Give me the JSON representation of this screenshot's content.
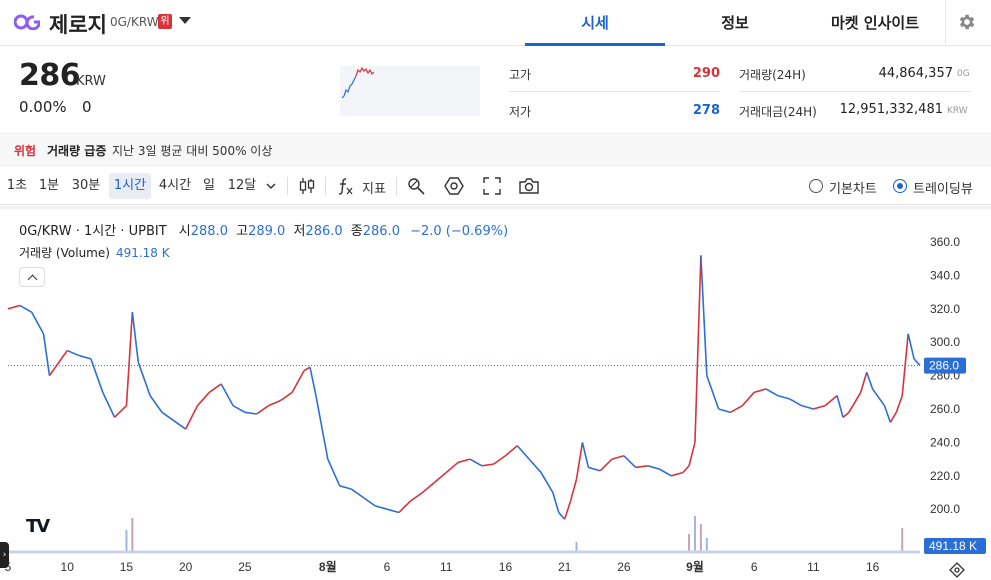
{
  "header": {
    "coin_name": "제로지",
    "pair": "0G/KRW",
    "warning_badge": "위",
    "tabs": [
      {
        "label": "시세",
        "active": true
      },
      {
        "label": "정보",
        "active": false
      },
      {
        "label": "마켓 인사이트",
        "active": false
      }
    ]
  },
  "ticker": {
    "price": "286",
    "unit": "KRW",
    "change_rate": "0.00%",
    "change_price": "0",
    "high_label": "고가",
    "high_value": "290",
    "low_label": "저가",
    "low_value": "278",
    "volume_label": "거래량(24H)",
    "volume_value": "44,864,357",
    "volume_unit": "0G",
    "amount_label": "거래대금(24H)",
    "amount_value": "12,951,332,481",
    "amount_unit": "KRW"
  },
  "alert": {
    "tag": "위험",
    "title": "거래량 급증",
    "text": "지난 3일 평균 대비 500% 이상"
  },
  "toolbar": {
    "timeframes": [
      {
        "label": "1초",
        "active": false
      },
      {
        "label": "1분",
        "active": false
      },
      {
        "label": "30분",
        "active": false
      },
      {
        "label": "1시간",
        "active": true
      },
      {
        "label": "4시간",
        "active": false
      },
      {
        "label": "일",
        "active": false
      },
      {
        "label": "12달",
        "active": false
      }
    ],
    "indicator_label": "지표",
    "chart_modes": [
      {
        "label": "기본차트",
        "selected": false
      },
      {
        "label": "트레이딩뷰",
        "selected": true
      }
    ]
  },
  "chart_legend": {
    "symbol": "0G/KRW · 1시간 · UPBIT",
    "open_label": "시",
    "open_value": "288.0",
    "high_label": "고",
    "high_value": "289.0",
    "low_label": "저",
    "low_value": "286.0",
    "close_label": "종",
    "close_value": "286.0",
    "change": "−2.0 (−0.69%)",
    "volume_label": "거래량 (Volume)",
    "volume_value": "491.18 K"
  },
  "colors": {
    "accent": "#1a63d3",
    "up": "#d6333d",
    "down": "#2b6fd6",
    "alert": "#d6333d"
  },
  "chart_data": {
    "type": "line",
    "title": "0G/KRW · 1시간 · UPBIT",
    "ylim": [
      190,
      365
    ],
    "y_ticks": [
      "360.0",
      "340.0",
      "320.0",
      "300.0",
      "280.0",
      "260.0",
      "240.0",
      "220.0",
      "200.0"
    ],
    "y_tick_values": [
      360,
      340,
      320,
      300,
      280,
      260,
      240,
      220,
      200
    ],
    "x_ticks": [
      "5",
      "10",
      "15",
      "20",
      "25",
      "8월",
      "6",
      "11",
      "16",
      "21",
      "26",
      "9월",
      "6",
      "11",
      "16"
    ],
    "x_tick_positions": [
      0,
      5,
      10,
      15,
      20,
      27,
      32,
      37,
      42,
      47,
      52,
      58,
      63,
      68,
      73
    ],
    "x_range": [
      0,
      77
    ],
    "last_price_label": "286.0",
    "last_price": 286.0,
    "last_volume_label": "491.18 K",
    "series": [
      {
        "name": "0G/KRW",
        "x": [
          0,
          1,
          2,
          3,
          3.5,
          4,
          5,
          6,
          7,
          8,
          9,
          10,
          10.5,
          11,
          12,
          13,
          14,
          15,
          16,
          17,
          18,
          19,
          20,
          21,
          22,
          23,
          24,
          25,
          25.5,
          26,
          27,
          28,
          29,
          30,
          31,
          32,
          33,
          34,
          35,
          36,
          37,
          38,
          39,
          40,
          41,
          42,
          43,
          44,
          45,
          46,
          46.5,
          47,
          47.5,
          48,
          48.5,
          49,
          50,
          51,
          52,
          53,
          54,
          55,
          56,
          57,
          57.5,
          58,
          58.5,
          59,
          60,
          61,
          62,
          63,
          64,
          65,
          66,
          67,
          68,
          69,
          70,
          70.5,
          71,
          72,
          72.5,
          73,
          74,
          74.5,
          75,
          75.5,
          76,
          76.5,
          77
        ],
        "values": [
          320,
          322,
          318,
          305,
          280,
          285,
          295,
          292,
          290,
          270,
          255,
          262,
          318,
          288,
          268,
          258,
          253,
          248,
          262,
          270,
          275,
          262,
          258,
          257,
          262,
          265,
          270,
          283,
          285,
          268,
          230,
          214,
          212,
          207,
          202,
          200,
          198,
          205,
          210,
          216,
          222,
          228,
          230,
          226,
          227,
          232,
          238,
          230,
          222,
          210,
          198,
          194,
          205,
          218,
          240,
          225,
          223,
          230,
          232,
          225,
          226,
          224,
          220,
          222,
          226,
          240,
          352,
          280,
          260,
          258,
          262,
          270,
          272,
          268,
          266,
          262,
          260,
          262,
          268,
          255,
          258,
          270,
          282,
          272,
          262,
          252,
          258,
          268,
          305,
          290,
          286
        ]
      }
    ],
    "volume": {
      "x": [
        10,
        10.5,
        48,
        57.5,
        58,
        58.5,
        59,
        75.5
      ],
      "values": [
        0.55,
        0.85,
        0.25,
        0.45,
        0.9,
        0.7,
        0.35,
        0.6
      ],
      "unit": "relative"
    },
    "grid": false,
    "ylabel": "",
    "xlabel": ""
  }
}
